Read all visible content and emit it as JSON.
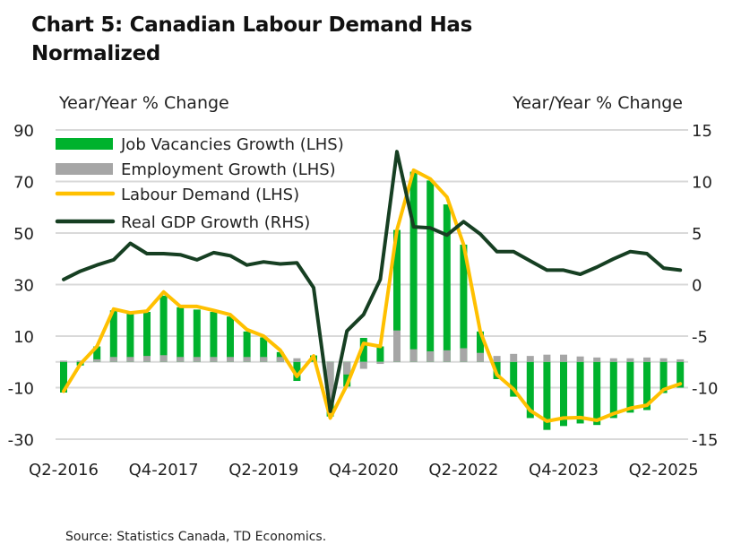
{
  "title": "Chart 5: Canadian Labour Demand Has Normalized",
  "source": "Source: Statistics Canada, TD Economics.",
  "chart_data": {
    "type": "bar+line",
    "left_axis": {
      "label": "Year/Year % Change",
      "range": [
        -30,
        90
      ],
      "ticks": [
        90,
        70,
        50,
        30,
        10,
        -10,
        -30
      ]
    },
    "right_axis": {
      "label": "Year/Year % Change",
      "range": [
        -15,
        15
      ],
      "ticks": [
        15,
        10,
        5,
        0,
        -5,
        -10,
        -15
      ]
    },
    "grid": true,
    "legend_position": "top-left",
    "x_tick_labels": [
      "Q2-2016",
      "Q4-2017",
      "Q2-2019",
      "Q4-2020",
      "Q2-2022",
      "Q4-2023",
      "Q2-2025"
    ],
    "x_tick_every": 6,
    "categories": [
      "Q2-2016",
      "Q3-2016",
      "Q4-2016",
      "Q1-2017",
      "Q2-2017",
      "Q3-2017",
      "Q4-2017",
      "Q1-2018",
      "Q2-2018",
      "Q3-2018",
      "Q4-2018",
      "Q1-2019",
      "Q2-2019",
      "Q3-2019",
      "Q4-2019",
      "Q1-2020",
      "Q2-2020",
      "Q3-2020",
      "Q4-2020",
      "Q1-2021",
      "Q2-2021",
      "Q3-2021",
      "Q4-2021",
      "Q1-2022",
      "Q2-2022",
      "Q3-2022",
      "Q4-2022",
      "Q1-2023",
      "Q2-2023",
      "Q3-2023",
      "Q4-2023",
      "Q1-2024",
      "Q2-2024",
      "Q3-2024",
      "Q4-2024",
      "Q1-2025",
      "Q2-2025",
      "Q3-2025"
    ],
    "series": [
      {
        "name": "Job Vacancies Growth (LHS)",
        "type": "bar",
        "axis": "left",
        "color": "#00b22d",
        "values": [
          -11.9,
          -1.4,
          6,
          20,
          18.8,
          19.4,
          25.7,
          21.2,
          20.3,
          19.4,
          17.6,
          11.8,
          9.5,
          3.8,
          -7.4,
          2.5,
          -21.2,
          -9.6,
          9.3,
          6,
          51.2,
          73.8,
          70.4,
          61.1,
          45.5,
          11.8,
          -6.7,
          -13.5,
          -21.8,
          -26.4,
          -24.9,
          -23.9,
          -24.5,
          -21.8,
          -19.7,
          -18.7,
          -12.1,
          -10
        ]
      },
      {
        "name": "Employment Growth (LHS)",
        "type": "bar",
        "axis": "left",
        "color": "#a6a6a6",
        "values": [
          0.5,
          0.5,
          1,
          1.9,
          1.9,
          2.3,
          2.6,
          1.9,
          1.9,
          1.9,
          1.9,
          1.9,
          1.9,
          1.9,
          1.4,
          0,
          -16,
          -4.9,
          -2.7,
          -0.8,
          12.2,
          4.9,
          4.1,
          4.5,
          5.3,
          3.5,
          2.3,
          3.1,
          2.3,
          2.8,
          2.8,
          2.1,
          1.7,
          1.4,
          1.4,
          1.7,
          1.4,
          1
        ]
      },
      {
        "name": "Labour Demand (LHS)",
        "type": "line",
        "axis": "left",
        "color": "#ffc000",
        "values": [
          -11.4,
          -0.9,
          6,
          20.5,
          19,
          19.7,
          27.1,
          21.5,
          21.5,
          20,
          18.3,
          12.5,
          10,
          4.5,
          -5.6,
          2.3,
          -21.8,
          -9,
          7.2,
          6,
          51.2,
          74.4,
          71,
          64,
          45.5,
          11.8,
          -5,
          -10.6,
          -18.9,
          -23,
          -21.8,
          -21.6,
          -22.7,
          -20.1,
          -18,
          -16.8,
          -10.8,
          -8.5
        ]
      },
      {
        "name": "Real GDP Growth (RHS)",
        "type": "line",
        "axis": "right",
        "color": "#163f22",
        "values": [
          0.5,
          1.3,
          1.9,
          2.4,
          4.0,
          3.0,
          3.0,
          2.9,
          2.4,
          3.1,
          2.8,
          1.9,
          2.2,
          2.0,
          2.1,
          -0.3,
          -12.3,
          -4.5,
          -2.9,
          0.5,
          12.9,
          5.6,
          5.5,
          4.8,
          6.1,
          4.9,
          3.2,
          3.2,
          2.3,
          1.4,
          1.4,
          1.0,
          1.7,
          2.5,
          3.2,
          3.0,
          1.6,
          1.4
        ]
      }
    ]
  }
}
